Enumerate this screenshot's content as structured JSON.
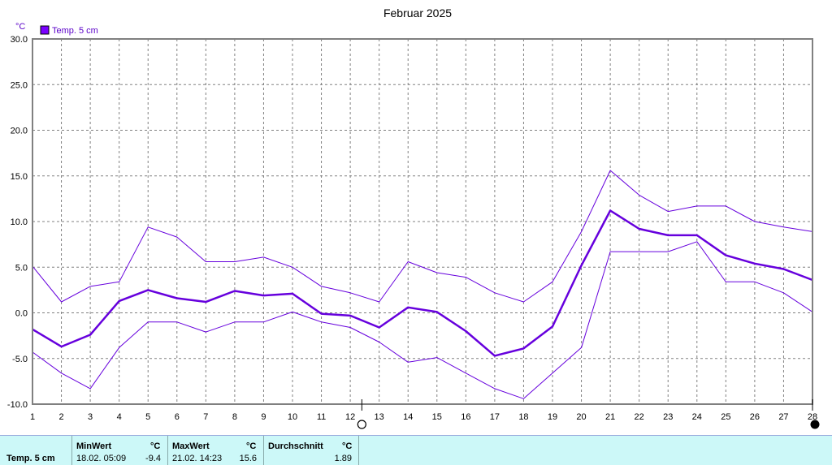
{
  "chart_data": {
    "type": "line",
    "title": "Februar 2025",
    "y_unit": "°C",
    "ylim": [
      -10,
      30
    ],
    "y_ticks": [
      "30.0",
      "25.0",
      "20.0",
      "15.0",
      "10.0",
      "5.0",
      "0.0",
      "-5.0",
      "-10.0"
    ],
    "x": [
      1,
      2,
      3,
      4,
      5,
      6,
      7,
      8,
      9,
      10,
      11,
      12,
      13,
      14,
      15,
      16,
      17,
      18,
      19,
      20,
      21,
      22,
      23,
      24,
      25,
      26,
      27,
      28
    ],
    "grid": true,
    "legend_position": "top-left",
    "series": [
      {
        "name": "Temp. 5 cm",
        "role": "mean",
        "values": [
          -1.8,
          -3.7,
          -2.4,
          1.3,
          2.5,
          1.6,
          1.2,
          2.4,
          1.9,
          2.1,
          -0.1,
          -0.3,
          -1.6,
          0.6,
          0.1,
          -2.0,
          -4.7,
          -3.9,
          -1.5,
          5.2,
          11.2,
          9.2,
          8.5,
          8.5,
          6.3,
          5.4,
          4.8,
          3.6
        ]
      },
      {
        "role": "max",
        "values": [
          5.1,
          1.2,
          2.9,
          3.4,
          9.4,
          8.3,
          5.6,
          5.6,
          6.1,
          5.0,
          2.9,
          2.2,
          1.2,
          5.6,
          4.4,
          3.9,
          2.2,
          1.2,
          3.4,
          8.9,
          15.6,
          12.9,
          11.1,
          11.7,
          11.7,
          10.0,
          9.4,
          8.9
        ]
      },
      {
        "role": "min",
        "values": [
          -4.3,
          -6.6,
          -8.3,
          -3.8,
          -1.0,
          -1.0,
          -2.1,
          -1.0,
          -1.0,
          0.1,
          -1.0,
          -1.6,
          -3.2,
          -5.4,
          -4.9,
          -6.6,
          -8.3,
          -9.4,
          -6.6,
          -3.8,
          6.7,
          6.7,
          6.7,
          7.8,
          3.4,
          3.4,
          2.2,
          0.1
        ]
      }
    ],
    "markers": [
      {
        "symbol": "new-moon",
        "x": 12.4
      },
      {
        "symbol": "full-moon",
        "x": 28
      }
    ]
  },
  "stats": {
    "row_label": "Temp. 5 cm",
    "min": {
      "label": "MinWert",
      "unit": "°C",
      "date": "18.02.  05:09",
      "value": "-9.4"
    },
    "max": {
      "label": "MaxWert",
      "unit": "°C",
      "date": "21.02.  14:23",
      "value": "15.6"
    },
    "avg": {
      "label": "Durchschnitt",
      "unit": "°C",
      "value": "1.89"
    }
  },
  "colors": {
    "series": "#6600dd",
    "legend_box": "#7a00ff",
    "grid": "#808080",
    "stats_bg": "#ccf8f8"
  }
}
